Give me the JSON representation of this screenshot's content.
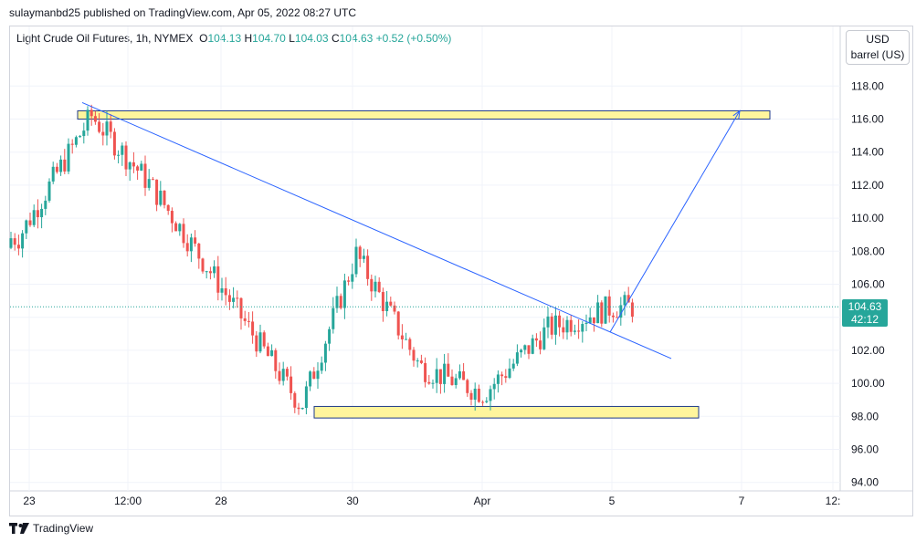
{
  "header": {
    "publish_line": "sulaymanbd25 published on TradingView.com, Apr 05, 2022 08:27 UTC"
  },
  "legend": {
    "symbol": "Light Crude Oil Futures, 1h, NYMEX",
    "open_label": "O",
    "open": "104.13",
    "high_label": "H",
    "high": "104.70",
    "low_label": "L",
    "low": "104.03",
    "close_label": "C",
    "close": "104.63",
    "change": "+0.52 (+0.50%)"
  },
  "unit_box": {
    "currency": "USD",
    "unit": "barrel (US)"
  },
  "price_tag": {
    "price": "104.63",
    "countdown": "42:12"
  },
  "footer": {
    "brand": "TradingView"
  },
  "colors": {
    "up": "#26a69a",
    "down": "#ef5350",
    "trendline": "#2962ff",
    "zone_fill": "#fff59d",
    "zone_border": "#1e3a8a",
    "grid": "#f0f3fa"
  },
  "chart_data": {
    "type": "candlestick",
    "title": "Light Crude Oil Futures, 1h, NYMEX",
    "ylim": [
      93.5,
      120
    ],
    "y_ticks": [
      "118.00",
      "116.00",
      "114.00",
      "112.00",
      "110.00",
      "108.00",
      "106.00",
      "104.00",
      "102.00",
      "100.00",
      "98.00",
      "96.00",
      "94.00"
    ],
    "x_ticks": [
      "23",
      "12:00",
      "28",
      "30",
      "Apr",
      "5",
      "7",
      "12:"
    ],
    "key_closes": [
      {
        "t": "23",
        "close": 108.8
      },
      {
        "t": "24",
        "close": 116.2
      },
      {
        "t": "25",
        "close": 112.0
      },
      {
        "t": "28",
        "close": 106.0
      },
      {
        "t": "29",
        "close": 98.6
      },
      {
        "t": "30",
        "close": 107.8
      },
      {
        "t": "31",
        "close": 101.0
      },
      {
        "t": "Apr 1",
        "close": 99.4
      },
      {
        "t": "Apr 4",
        "close": 103.3
      },
      {
        "t": "5",
        "close": 104.63
      }
    ],
    "resistance_zone": [
      116.0,
      116.5
    ],
    "support_zone": [
      97.9,
      98.6
    ],
    "trendline": {
      "from": {
        "t": "24",
        "price": 117.0
      },
      "to": {
        "t": "6",
        "price": 101.5
      }
    },
    "projection": {
      "from": {
        "t": "5",
        "price": 103.1
      },
      "to": {
        "t": "7",
        "price": 116.5
      }
    },
    "last_price": 104.63
  }
}
